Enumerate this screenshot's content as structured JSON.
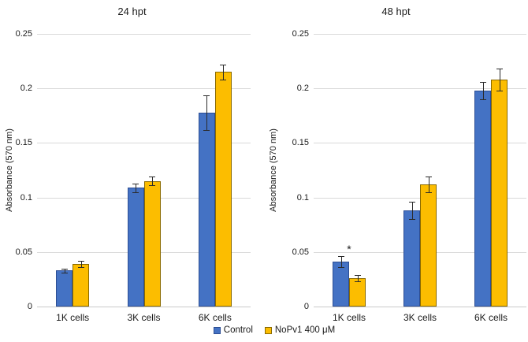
{
  "figure": {
    "ylabel": "Absorbance (570 nm)",
    "background": "#ffffff",
    "gridline_color": "#d9d9d9",
    "legend": [
      {
        "label": "Control",
        "color": "#4472C4",
        "border": "#2d4e94"
      },
      {
        "label": "NoPv1 400 μM",
        "color": "#FCBD00",
        "border": "#8a6a00"
      }
    ]
  },
  "chart_data": [
    {
      "type": "bar",
      "title": "24 hpt",
      "ylabel": "Absorbance (570 nm)",
      "categories": [
        "1K cells",
        "3K cells",
        "6K cells"
      ],
      "series": [
        {
          "name": "Control",
          "color": "#4472C4",
          "border": "#2d4e94",
          "values": [
            0.033,
            0.109,
            0.178
          ],
          "errors": [
            0.002,
            0.004,
            0.016
          ]
        },
        {
          "name": "NoPv1 400 μM",
          "color": "#FCBD00",
          "border": "#8a6a00",
          "values": [
            0.039,
            0.115,
            0.215
          ],
          "errors": [
            0.003,
            0.004,
            0.007
          ]
        }
      ],
      "ylim": [
        0,
        0.25
      ],
      "yticks": [
        0,
        0.05,
        0.1,
        0.15,
        0.2,
        0.25
      ],
      "ytick_labels": [
        "0",
        "0.05",
        "0.1",
        "0.15",
        "0.2",
        "0.25"
      ],
      "grid": true,
      "legend_position": "bottom",
      "annotations": []
    },
    {
      "type": "bar",
      "title": "48 hpt",
      "ylabel": "Absorbance (570 nm)",
      "categories": [
        "1K cells",
        "3K cells",
        "6K cells"
      ],
      "series": [
        {
          "name": "Control",
          "color": "#4472C4",
          "border": "#2d4e94",
          "values": [
            0.041,
            0.088,
            0.198
          ],
          "errors": [
            0.005,
            0.008,
            0.008
          ]
        },
        {
          "name": "NoPv1 400 μM",
          "color": "#FCBD00",
          "border": "#8a6a00",
          "values": [
            0.026,
            0.112,
            0.208
          ],
          "errors": [
            0.003,
            0.007,
            0.01
          ]
        }
      ],
      "ylim": [
        0,
        0.25
      ],
      "yticks": [
        0,
        0.05,
        0.1,
        0.15,
        0.2,
        0.25
      ],
      "ytick_labels": [
        "0",
        "0.05",
        "0.1",
        "0.15",
        "0.2",
        "0.25"
      ],
      "grid": true,
      "legend_position": "bottom",
      "annotations": [
        {
          "text": "*",
          "category": "1K cells",
          "series": "Control"
        }
      ]
    }
  ]
}
